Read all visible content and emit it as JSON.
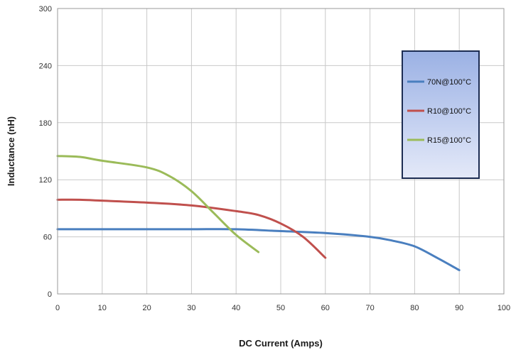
{
  "chart_data": {
    "type": "line",
    "title": "",
    "xlabel": "DC Current (Amps)",
    "ylabel": "Inductance (nH)",
    "xlim": [
      0,
      100
    ],
    "ylim": [
      0,
      300
    ],
    "xticks": [
      0,
      10,
      20,
      30,
      40,
      50,
      60,
      70,
      80,
      90,
      100
    ],
    "yticks": [
      0,
      60,
      120,
      180,
      240,
      300
    ],
    "grid": true,
    "legend_position": "top-right",
    "series": [
      {
        "name": "70N@100°C",
        "color": "#4a7fbf",
        "points": [
          [
            0,
            68
          ],
          [
            10,
            68
          ],
          [
            20,
            68
          ],
          [
            30,
            68
          ],
          [
            40,
            68
          ],
          [
            50,
            66
          ],
          [
            60,
            64
          ],
          [
            70,
            60
          ],
          [
            75,
            56
          ],
          [
            80,
            50
          ],
          [
            85,
            38
          ],
          [
            90,
            25
          ]
        ]
      },
      {
        "name": "R10@100°C",
        "color": "#c0504d",
        "points": [
          [
            0,
            99
          ],
          [
            5,
            99
          ],
          [
            10,
            98
          ],
          [
            20,
            96
          ],
          [
            30,
            93
          ],
          [
            40,
            87
          ],
          [
            45,
            83
          ],
          [
            50,
            74
          ],
          [
            55,
            60
          ],
          [
            60,
            38
          ]
        ]
      },
      {
        "name": "R15@100°C",
        "color": "#9bbb59",
        "points": [
          [
            0,
            145
          ],
          [
            5,
            144
          ],
          [
            10,
            140
          ],
          [
            20,
            133
          ],
          [
            25,
            124
          ],
          [
            30,
            108
          ],
          [
            35,
            85
          ],
          [
            40,
            62
          ],
          [
            45,
            44
          ]
        ]
      }
    ]
  }
}
